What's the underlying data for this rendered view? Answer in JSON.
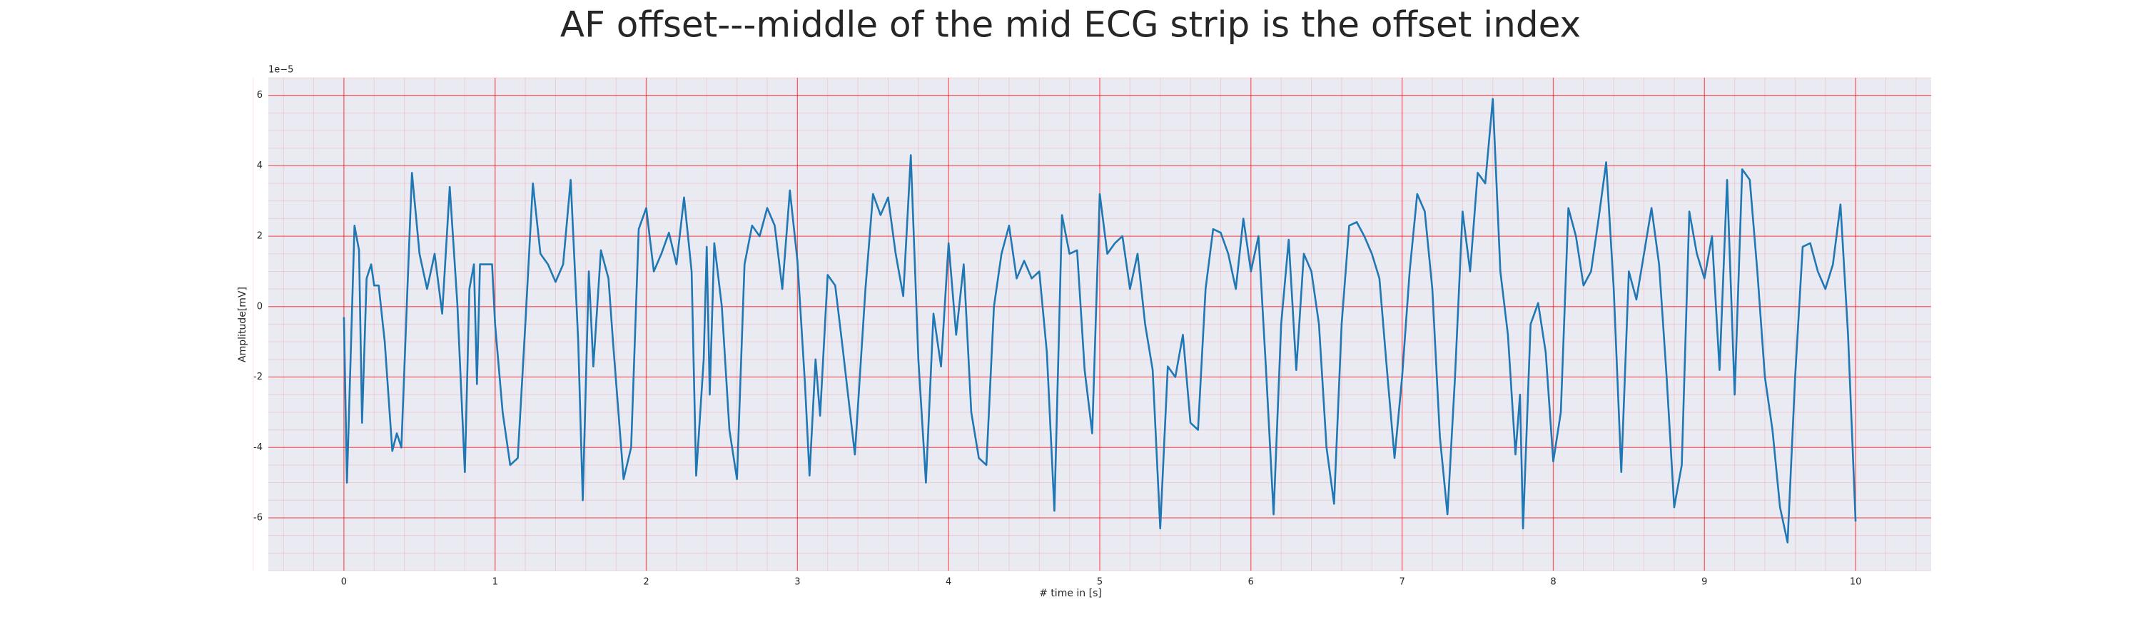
{
  "chart_data": {
    "type": "line",
    "title": "AF offset---middle of the mid ECG strip is the offset index",
    "x_label": "# time in [s]",
    "y_label": "Amplitude[mV]",
    "offset_text": "1e−5",
    "x": [
      0,
      0.02,
      0.07,
      0.1,
      0.12,
      0.15,
      0.18,
      0.2,
      0.23,
      0.27,
      0.32,
      0.35,
      0.38,
      0.42,
      0.45,
      0.5,
      0.55,
      0.6,
      0.65,
      0.7,
      0.75,
      0.8,
      0.83,
      0.86,
      0.88,
      0.9,
      0.95,
      0.98,
      1.0,
      1.05,
      1.1,
      1.15,
      1.2,
      1.25,
      1.3,
      1.35,
      1.4,
      1.45,
      1.5,
      1.55,
      1.58,
      1.62,
      1.65,
      1.7,
      1.75,
      1.78,
      1.85,
      1.9,
      1.95,
      2.0,
      2.05,
      2.1,
      2.15,
      2.2,
      2.25,
      2.3,
      2.33,
      2.38,
      2.4,
      2.42,
      2.45,
      2.5,
      2.55,
      2.6,
      2.65,
      2.7,
      2.75,
      2.8,
      2.85,
      2.9,
      2.95,
      3.0,
      3.05,
      3.08,
      3.12,
      3.15,
      3.2,
      3.25,
      3.3,
      3.38,
      3.45,
      3.5,
      3.55,
      3.6,
      3.65,
      3.7,
      3.75,
      3.8,
      3.85,
      3.9,
      3.95,
      4.0,
      4.05,
      4.1,
      4.15,
      4.2,
      4.25,
      4.3,
      4.35,
      4.4,
      4.45,
      4.5,
      4.55,
      4.6,
      4.65,
      4.7,
      4.75,
      4.8,
      4.85,
      4.9,
      4.95,
      5.0,
      5.05,
      5.1,
      5.15,
      5.2,
      5.25,
      5.3,
      5.35,
      5.4,
      5.45,
      5.5,
      5.55,
      5.6,
      5.65,
      5.7,
      5.75,
      5.8,
      5.85,
      5.9,
      5.95,
      6.0,
      6.05,
      6.1,
      6.15,
      6.2,
      6.25,
      6.3,
      6.35,
      6.4,
      6.45,
      6.5,
      6.55,
      6.6,
      6.65,
      6.7,
      6.75,
      6.8,
      6.85,
      6.9,
      6.95,
      7.0,
      7.05,
      7.1,
      7.15,
      7.2,
      7.25,
      7.3,
      7.35,
      7.4,
      7.45,
      7.5,
      7.55,
      7.6,
      7.65,
      7.7,
      7.75,
      7.78,
      7.8,
      7.85,
      7.9,
      7.95,
      8.0,
      8.05,
      8.1,
      8.15,
      8.2,
      8.25,
      8.3,
      8.35,
      8.4,
      8.45,
      8.5,
      8.55,
      8.6,
      8.65,
      8.7,
      8.75,
      8.8,
      8.85,
      8.9,
      8.95,
      9.0,
      9.05,
      9.1,
      9.15,
      9.2,
      9.25,
      9.3,
      9.35,
      9.4,
      9.45,
      9.5,
      9.55,
      9.6,
      9.65,
      9.7,
      9.75,
      9.8,
      9.85,
      9.9,
      9.95,
      10.0
    ],
    "series": [
      {
        "color": "#1f77b4",
        "values": [
          -0.3,
          -5,
          2.3,
          1.6,
          -3.3,
          0.8,
          1.2,
          0.6,
          0.6,
          -1,
          -4.1,
          -3.6,
          -4,
          0.5,
          3.8,
          1.5,
          0.5,
          1.5,
          -0.2,
          3.4,
          0.1,
          -4.7,
          0.5,
          1.2,
          -2.2,
          1.2,
          1.2,
          1.2,
          -0.5,
          -3,
          -4.5,
          -4.3,
          -0.5,
          3.5,
          1.5,
          1.2,
          0.7,
          1.2,
          3.6,
          -1,
          -5.5,
          1,
          -1.7,
          1.6,
          0.8,
          -1,
          -4.9,
          -4,
          2.2,
          2.8,
          1,
          1.5,
          2.1,
          1.2,
          3.1,
          1,
          -4.8,
          -1.5,
          1.7,
          -2.5,
          1.8,
          0,
          -3.5,
          -4.9,
          1.2,
          2.3,
          2,
          2.8,
          2.3,
          0.5,
          3.3,
          1.3,
          -2.2,
          -4.8,
          -1.5,
          -3.1,
          0.9,
          0.6,
          -1.2,
          -4.2,
          0.5,
          3.2,
          2.6,
          3.1,
          1.5,
          0.3,
          4.3,
          -1.5,
          -5,
          -0.2,
          -1.7,
          1.8,
          -0.8,
          1.2,
          -3,
          -4.3,
          -4.5,
          0,
          1.5,
          2.3,
          0.8,
          1.3,
          0.8,
          1,
          -1.3,
          -5.8,
          2.6,
          1.5,
          1.6,
          -1.8,
          -3.6,
          3.2,
          1.5,
          1.8,
          2,
          0.5,
          1.5,
          -0.5,
          -1.8,
          -6.3,
          -1.7,
          -2,
          -0.8,
          -3.3,
          -3.5,
          0.5,
          2.2,
          2.1,
          1.5,
          0.5,
          2.5,
          1,
          2,
          -1.8,
          -5.9,
          -0.5,
          1.9,
          -1.8,
          1.5,
          1,
          -0.5,
          -4,
          -5.6,
          -0.5,
          2.3,
          2.4,
          2,
          1.5,
          0.8,
          -1.8,
          -4.3,
          -2,
          1,
          3.2,
          2.7,
          0.5,
          -3.7,
          -5.9,
          -2,
          2.7,
          1,
          3.8,
          3.5,
          5.9,
          1,
          -0.8,
          -4.2,
          -2.5,
          -6.3,
          -0.5,
          0.1,
          -1.3,
          -4.4,
          -3,
          2.8,
          2,
          0.6,
          1,
          2.5,
          4.1,
          0.5,
          -4.7,
          1,
          0.2,
          1.5,
          2.8,
          1.2,
          -2,
          -5.7,
          -4.5,
          2.7,
          1.5,
          0.8,
          2,
          -1.8,
          3.6,
          -2.5,
          3.9,
          3.6,
          1,
          -2,
          -3.5,
          -5.7,
          -6.7,
          -2,
          1.7,
          1.8,
          1,
          0.5,
          1.2,
          2.9,
          -0.8,
          -6.1
        ]
      }
    ],
    "xlim": [
      -0.5,
      10.5
    ],
    "ylim": [
      -7.5,
      6.5
    ],
    "xticks": [
      0,
      1,
      2,
      3,
      4,
      5,
      6,
      7,
      8,
      9,
      10
    ],
    "yticks": [
      -6,
      -4,
      -2,
      0,
      2,
      4,
      6
    ],
    "grid": true,
    "minor_grid": true,
    "grid_color": "#ff0000",
    "background": "#eaeaf2"
  }
}
